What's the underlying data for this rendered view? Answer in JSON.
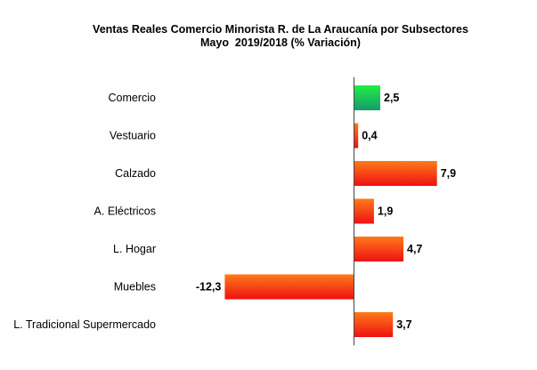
{
  "chart_data": {
    "type": "bar",
    "orientation": "horizontal",
    "title": "Ventas Reales Comercio Minorista R. de La Araucanía por Subsectores",
    "subtitle": "Mayo  2019/2018 (% Variación)",
    "categories": [
      "Comercio",
      "Vestuario",
      "Calzado",
      "A. Eléctricos",
      "L. Hogar",
      "Muebles",
      "L. Tradicional Supermercado"
    ],
    "values": [
      2.5,
      0.4,
      7.9,
      1.9,
      4.7,
      -12.3,
      3.7
    ],
    "value_labels": [
      "2,5",
      "0,4",
      "7,9",
      "1,9",
      "4,7",
      "-12,3",
      "3,7"
    ],
    "highlight_category": "Comercio",
    "colors": {
      "highlight_top": "#22ee44",
      "highlight_bottom": "#169a6e",
      "bar_top": "#ff7a1a",
      "bar_bottom": "#ee1111",
      "axis": "#444444"
    },
    "xlim": [
      -12.3,
      7.9
    ],
    "grid": false,
    "legend": "none"
  }
}
